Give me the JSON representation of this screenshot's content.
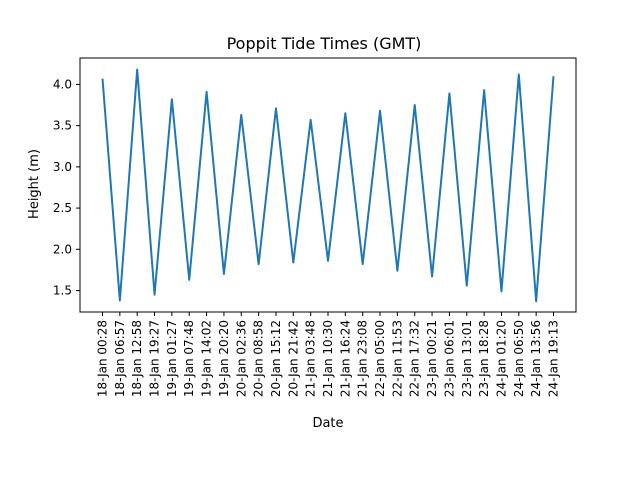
{
  "chart_data": {
    "type": "line",
    "title": "Poppit Tide Times (GMT)",
    "xlabel": "Date",
    "ylabel": "Height (m)",
    "categories": [
      "18-Jan 00:28",
      "18-Jan 06:57",
      "18-Jan 12:58",
      "18-Jan 19:27",
      "19-Jan 01:27",
      "19-Jan 07:48",
      "19-Jan 14:02",
      "19-Jan 20:20",
      "20-Jan 02:36",
      "20-Jan 08:58",
      "20-Jan 15:12",
      "20-Jan 21:42",
      "21-Jan 03:48",
      "21-Jan 10:30",
      "21-Jan 16:24",
      "21-Jan 23:08",
      "22-Jan 05:00",
      "22-Jan 11:53",
      "22-Jan 17:32",
      "23-Jan 00:21",
      "23-Jan 06:01",
      "23-Jan 13:01",
      "23-Jan 18:28",
      "24-Jan 01:20",
      "24-Jan 06:50",
      "24-Jan 13:56",
      "24-Jan 19:13"
    ],
    "series": [
      {
        "values": [
          4.07,
          1.38,
          4.18,
          1.45,
          3.82,
          1.63,
          3.91,
          1.7,
          3.63,
          1.82,
          3.71,
          1.84,
          3.57,
          1.86,
          3.65,
          1.82,
          3.68,
          1.74,
          3.75,
          1.67,
          3.89,
          1.56,
          3.93,
          1.49,
          4.12,
          1.37,
          4.1
        ],
        "color": "#1f77b4"
      }
    ],
    "ylim": [
      1.24,
      4.32
    ],
    "yticks": [
      1.5,
      2.0,
      2.5,
      3.0,
      3.5,
      4.0
    ],
    "grid": false,
    "legend": "none"
  }
}
